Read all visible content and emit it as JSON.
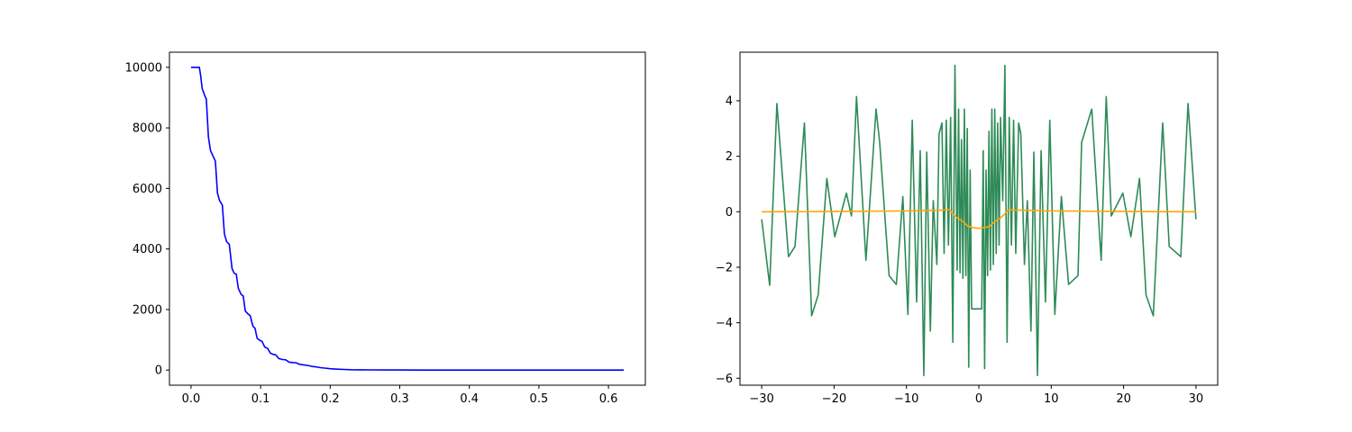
{
  "chart_data": [
    {
      "type": "line",
      "title": "",
      "xlabel": "",
      "ylabel": "",
      "xlim": [
        -0.031,
        0.653
      ],
      "ylim": [
        -500,
        10500
      ],
      "grid": false,
      "xticks": [
        0.0,
        0.1,
        0.2,
        0.3,
        0.4,
        0.5,
        0.6
      ],
      "xtick_labels": [
        "0.0",
        "0.1",
        "0.2",
        "0.3",
        "0.4",
        "0.5",
        "0.6"
      ],
      "yticks": [
        0,
        2000,
        4000,
        6000,
        8000,
        10000
      ],
      "ytick_labels": [
        "0",
        "2000",
        "4000",
        "6000",
        "8000",
        "10000"
      ],
      "series": [
        {
          "color": "#0000ff",
          "x": [
            0.0,
            0.012,
            0.014,
            0.016,
            0.02,
            0.022,
            0.025,
            0.028,
            0.032,
            0.035,
            0.038,
            0.041,
            0.045,
            0.048,
            0.051,
            0.055,
            0.059,
            0.062,
            0.065,
            0.068,
            0.072,
            0.075,
            0.078,
            0.082,
            0.085,
            0.089,
            0.092,
            0.095,
            0.099,
            0.102,
            0.106,
            0.11,
            0.114,
            0.118,
            0.122,
            0.126,
            0.131,
            0.136,
            0.141,
            0.146,
            0.151,
            0.156,
            0.162,
            0.168,
            0.174,
            0.18,
            0.186,
            0.192,
            0.2,
            0.21,
            0.22,
            0.23,
            0.245,
            0.26,
            0.28,
            0.3,
            0.33,
            0.36,
            0.4,
            0.45,
            0.5,
            0.55,
            0.6,
            0.622
          ],
          "y": [
            10000,
            10000,
            9700,
            9300,
            9050,
            8950,
            7700,
            7250,
            7050,
            6900,
            5850,
            5600,
            5450,
            4500,
            4250,
            4150,
            3350,
            3200,
            3170,
            2700,
            2500,
            2450,
            1950,
            1850,
            1800,
            1450,
            1380,
            1050,
            980,
            950,
            760,
            720,
            560,
            520,
            500,
            380,
            350,
            340,
            260,
            250,
            240,
            190,
            170,
            150,
            120,
            105,
            80,
            65,
            45,
            30,
            20,
            12,
            8,
            5,
            3,
            2,
            1,
            0,
            0,
            0,
            0,
            0,
            0,
            0
          ]
        }
      ]
    },
    {
      "type": "line",
      "title": "",
      "xlabel": "",
      "ylabel": "",
      "xlim": [
        -33,
        33
      ],
      "ylim": [
        -6.25,
        5.75
      ],
      "grid": false,
      "xticks": [
        -30,
        -20,
        -10,
        0,
        10,
        20,
        30
      ],
      "xtick_labels": [
        "−30",
        "−20",
        "−10",
        "0",
        "10",
        "20",
        "30"
      ],
      "yticks": [
        -6,
        -4,
        -2,
        0,
        2,
        4
      ],
      "ytick_labels": [
        "−6",
        "−4",
        "−2",
        "0",
        "2",
        "4"
      ],
      "series": [
        {
          "color": "#2e8b57",
          "x": [
            -30.0,
            -28.9,
            -27.9,
            -26.3,
            -25.4,
            -24.1,
            -23.1,
            -22.2,
            -21.0,
            -19.9,
            -18.3,
            -17.6,
            -16.9,
            -15.6,
            -14.2,
            -13.7,
            -12.4,
            -11.4,
            -10.5,
            -9.8,
            -9.2,
            -8.6,
            -8.1,
            -7.6,
            -7.2,
            -6.7,
            -6.3,
            -5.8,
            -5.5,
            -5.1,
            -4.8,
            -4.5,
            -4.2,
            -3.9,
            -3.6,
            -3.3,
            -3.0,
            -2.8,
            -2.6,
            -2.4,
            -2.2,
            -2.0,
            -1.8,
            -1.6,
            -1.4,
            -1.2,
            -1.0,
            -0.8,
            -0.6,
            -0.4,
            -0.2,
            0.0,
            0.2,
            0.4,
            0.6,
            0.8,
            1.0,
            1.2,
            1.4,
            1.6,
            1.8,
            2.0,
            2.2,
            2.4,
            2.6,
            2.8,
            3.0,
            3.3,
            3.6,
            3.9,
            4.2,
            4.5,
            4.8,
            5.1,
            5.5,
            5.8,
            6.3,
            6.7,
            7.2,
            7.6,
            8.1,
            8.6,
            9.2,
            9.8,
            10.5,
            11.4,
            12.4,
            13.7,
            14.2,
            15.6,
            16.9,
            17.6,
            18.3,
            19.9,
            21.0,
            22.2,
            23.1,
            24.1,
            25.4,
            26.3,
            27.9,
            28.9,
            30.0
          ],
          "y": [
            -0.27,
            -2.65,
            3.9,
            -1.62,
            -1.25,
            3.2,
            -3.75,
            -3.0,
            1.2,
            -0.9,
            0.67,
            -0.15,
            4.15,
            -1.75,
            3.7,
            2.5,
            -2.3,
            -2.62,
            0.55,
            -3.7,
            3.3,
            -3.25,
            2.2,
            -5.9,
            2.15,
            -4.3,
            0.4,
            -1.9,
            2.8,
            3.2,
            -1.5,
            3.3,
            -1.2,
            3.4,
            -4.7,
            5.28,
            -2.1,
            3.7,
            -2.2,
            2.6,
            -2.4,
            3.7,
            -2.3,
            3.0,
            -5.6,
            1.5,
            -3.5,
            -3.5,
            -3.5,
            -3.5,
            -3.5,
            -3.5,
            -3.5,
            -3.5,
            2.2,
            -5.65,
            1.5,
            -2.3,
            2.9,
            -2.1,
            3.7,
            -1.9,
            3.7,
            -1.5,
            3.2,
            -1.2,
            3.4,
            0.4,
            5.28,
            -4.7,
            3.4,
            -1.2,
            3.3,
            -1.5,
            3.2,
            2.8,
            -1.9,
            0.4,
            -4.3,
            2.15,
            -5.9,
            2.2,
            -3.25,
            3.3,
            -3.7,
            0.55,
            -2.62,
            -2.3,
            2.5,
            3.7,
            -1.75,
            4.15,
            -0.15,
            0.67,
            -0.9,
            1.2,
            -3.0,
            -3.75,
            3.2,
            -1.25,
            -1.62,
            3.9,
            -0.27
          ]
        },
        {
          "color": "#ffa500",
          "x": [
            -30,
            -20,
            -10,
            -5,
            -4.2,
            -4.0,
            -3.5,
            -3.0,
            -2.5,
            -2.0,
            -1.5,
            -1.0,
            -0.5,
            0.0,
            0.5,
            1.0,
            1.5,
            2.0,
            2.5,
            3.0,
            3.5,
            4.0,
            4.2,
            5,
            10,
            20,
            30
          ],
          "y": [
            0.0,
            0.01,
            0.03,
            0.06,
            0.08,
            0.06,
            -0.1,
            -0.22,
            -0.3,
            -0.4,
            -0.52,
            -0.56,
            -0.58,
            -0.6,
            -0.58,
            -0.56,
            -0.52,
            -0.4,
            -0.3,
            -0.22,
            -0.1,
            0.06,
            0.08,
            0.06,
            0.03,
            0.01,
            0.0
          ]
        }
      ]
    }
  ]
}
